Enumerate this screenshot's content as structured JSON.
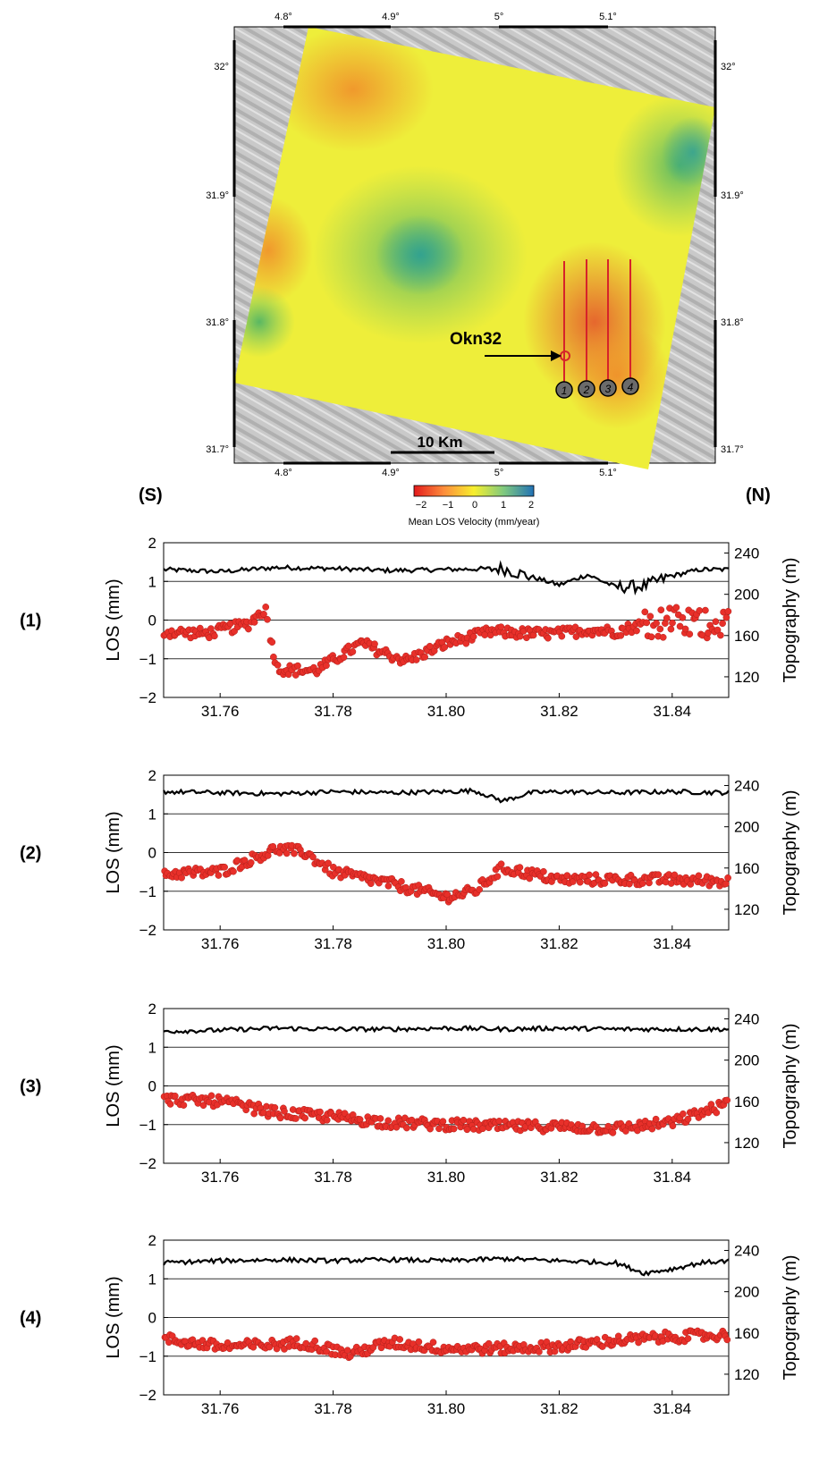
{
  "map": {
    "lon_labels": [
      "4.8°",
      "4.9°",
      "5°",
      "5.1°"
    ],
    "lat_labels": [
      "32°",
      "31.9°",
      "31.8°",
      "31.7°"
    ],
    "annotation": "Okn32",
    "scale_bar": "10 Km",
    "profile_markers": [
      "1",
      "2",
      "3",
      "4"
    ],
    "colorbar": {
      "ticks": [
        "−2",
        "−1",
        "0",
        "1",
        "2"
      ],
      "label": "Mean LOS Velocity (mm/year)",
      "colors": [
        "#e31a1c",
        "#fd8d3c",
        "#f7ef2e",
        "#7fc97f",
        "#2171b5"
      ]
    }
  },
  "direction": {
    "left": "(S)",
    "right": "(N)"
  },
  "chart_data": [
    {
      "type": "scatter",
      "panel_label": "(1)",
      "xlabel": "",
      "ylabel": "LOS (mm)",
      "y2label": "Topography (m)",
      "xlim": [
        31.75,
        31.85
      ],
      "ylim": [
        -2,
        2
      ],
      "y2lim": [
        100,
        250
      ],
      "x_ticks": [
        "31.76",
        "31.78",
        "31.80",
        "31.82",
        "31.84"
      ],
      "y_ticks": [
        "2",
        "1",
        "0",
        "−1",
        "−2"
      ],
      "y2_ticks": [
        "240",
        "200",
        "160",
        "120"
      ],
      "series": [
        {
          "type": "scatter",
          "color": "#e8302a",
          "x": [
            31.75,
            31.7575,
            31.765,
            31.768,
            31.77,
            31.773,
            31.777,
            31.785,
            31.79,
            31.793,
            31.8,
            31.808,
            31.815,
            31.82,
            31.825,
            31.83,
            31.835,
            31.84,
            31.845,
            31.85
          ],
          "y": [
            -0.3,
            -0.35,
            -0.1,
            0.3,
            -1.25,
            -1.3,
            -1.3,
            -0.6,
            -0.9,
            -1.05,
            -0.6,
            -0.3,
            -0.35,
            -0.35,
            -0.25,
            -0.3,
            -0.1,
            -0.05,
            -0.1,
            0.0
          ]
        },
        {
          "type": "line",
          "axis": "right",
          "color": "#000000",
          "x": [
            31.75,
            31.76,
            31.77,
            31.78,
            31.79,
            31.8,
            31.81,
            31.815,
            31.82,
            31.825,
            31.83,
            31.835,
            31.84,
            31.845,
            31.85
          ],
          "y": [
            224,
            222,
            226,
            225,
            223,
            224,
            225,
            217,
            209,
            219,
            207,
            208,
            218,
            224,
            224
          ]
        }
      ]
    },
    {
      "type": "scatter",
      "panel_label": "(2)",
      "xlabel": "",
      "ylabel": "LOS (mm)",
      "y2label": "Topography (m)",
      "xlim": [
        31.75,
        31.85
      ],
      "ylim": [
        -2,
        2
      ],
      "y2lim": [
        100,
        250
      ],
      "x_ticks": [
        "31.76",
        "31.78",
        "31.80",
        "31.82",
        "31.84"
      ],
      "y_ticks": [
        "2",
        "1",
        "0",
        "−1",
        "−2"
      ],
      "y2_ticks": [
        "240",
        "200",
        "160",
        "120"
      ],
      "series": [
        {
          "type": "scatter",
          "color": "#e8302a",
          "x": [
            31.75,
            31.76,
            31.765,
            31.77,
            31.775,
            31.78,
            31.79,
            31.8,
            31.805,
            31.81,
            31.815,
            31.82,
            31.83,
            31.84,
            31.85
          ],
          "y": [
            -0.55,
            -0.5,
            -0.2,
            0.1,
            0.0,
            -0.5,
            -0.8,
            -1.15,
            -1.0,
            -0.4,
            -0.55,
            -0.7,
            -0.7,
            -0.7,
            -0.75
          ]
        },
        {
          "type": "line",
          "axis": "right",
          "color": "#000000",
          "x": [
            31.75,
            31.76,
            31.77,
            31.78,
            31.79,
            31.8,
            31.805,
            31.81,
            31.815,
            31.82,
            31.83,
            31.84,
            31.85
          ],
          "y": [
            234,
            233,
            232,
            234,
            233,
            234,
            235,
            225,
            233,
            234,
            233,
            234,
            233
          ]
        }
      ]
    },
    {
      "type": "scatter",
      "panel_label": "(3)",
      "xlabel": "",
      "ylabel": "LOS (mm)",
      "y2label": "Topography (m)",
      "xlim": [
        31.75,
        31.85
      ],
      "ylim": [
        -2,
        2
      ],
      "y2lim": [
        100,
        250
      ],
      "x_ticks": [
        "31.76",
        "31.78",
        "31.80",
        "31.82",
        "31.84"
      ],
      "y_ticks": [
        "2",
        "1",
        "0",
        "−1",
        "−2"
      ],
      "y2_ticks": [
        "240",
        "200",
        "160",
        "120"
      ],
      "series": [
        {
          "type": "scatter",
          "color": "#e8302a",
          "x": [
            31.75,
            31.76,
            31.77,
            31.78,
            31.79,
            31.8,
            31.81,
            31.82,
            31.83,
            31.84,
            31.845,
            31.85
          ],
          "y": [
            -0.35,
            -0.4,
            -0.7,
            -0.8,
            -0.95,
            -1.0,
            -1.05,
            -1.05,
            -1.1,
            -0.95,
            -0.7,
            -0.45
          ]
        },
        {
          "type": "line",
          "axis": "right",
          "color": "#000000",
          "x": [
            31.75,
            31.76,
            31.77,
            31.78,
            31.79,
            31.8,
            31.81,
            31.82,
            31.83,
            31.84,
            31.85
          ],
          "y": [
            228,
            229,
            231,
            230,
            230,
            231,
            230,
            231,
            230,
            230,
            230
          ]
        }
      ]
    },
    {
      "type": "scatter",
      "panel_label": "(4)",
      "xlabel": "",
      "ylabel": "LOS (mm)",
      "y2label": "Topography (m)",
      "xlim": [
        31.75,
        31.85
      ],
      "ylim": [
        -2,
        2
      ],
      "y2lim": [
        100,
        250
      ],
      "x_ticks": [
        "31.76",
        "31.78",
        "31.80",
        "31.82",
        "31.84"
      ],
      "y_ticks": [
        "2",
        "1",
        "0",
        "−1",
        "−2"
      ],
      "y2_ticks": [
        "240",
        "200",
        "160",
        "120"
      ],
      "series": [
        {
          "type": "scatter",
          "color": "#e8302a",
          "x": [
            31.75,
            31.76,
            31.77,
            31.775,
            31.783,
            31.79,
            31.8,
            31.81,
            31.82,
            31.83,
            31.84,
            31.85
          ],
          "y": [
            -0.55,
            -0.75,
            -0.7,
            -0.65,
            -0.95,
            -0.65,
            -0.8,
            -0.8,
            -0.75,
            -0.6,
            -0.5,
            -0.45
          ]
        },
        {
          "type": "line",
          "axis": "right",
          "color": "#000000",
          "x": [
            31.75,
            31.76,
            31.77,
            31.78,
            31.79,
            31.8,
            31.81,
            31.82,
            31.83,
            31.835,
            31.84,
            31.845,
            31.85
          ],
          "y": [
            228,
            230,
            231,
            230,
            231,
            230,
            232,
            230,
            228,
            218,
            222,
            228,
            230
          ]
        }
      ]
    }
  ]
}
